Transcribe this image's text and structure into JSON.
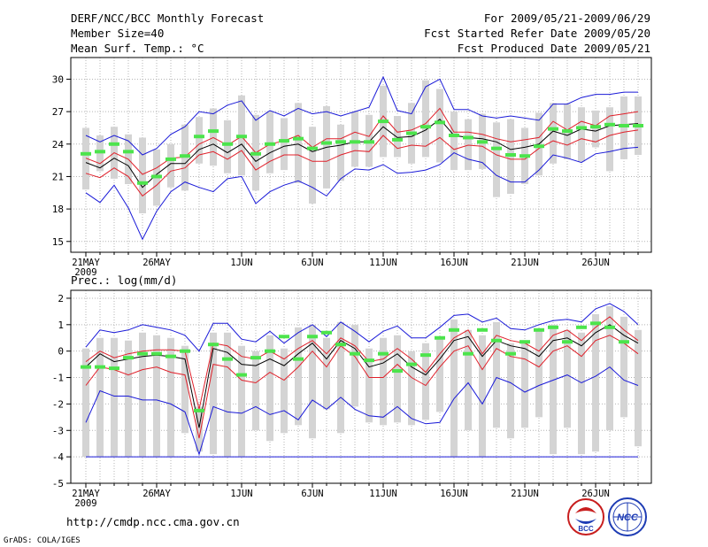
{
  "header": {
    "title": "DERF/NCC/BCC Monthly Forecast",
    "member_size": "Member Size=40",
    "variable": "Mean Surf. Temp.: °C",
    "period": "For 2009/05/21-2009/06/29",
    "started": "Fcst Started Refer Date 2009/05/20",
    "produced": "Fcst Produced Date 2009/05/21"
  },
  "footer": {
    "url": "http://cmdp.ncc.cma.gov.cn",
    "grads": "GrADS: COLA/IGES",
    "logo_bcc": "BCC",
    "logo_ncc": "NCC"
  },
  "colors": {
    "grid": "#b4b4b4",
    "box": "#d4d4d4",
    "mean": "#000000",
    "red": "#e0202a",
    "blue": "#1a1ad8",
    "obs": "#4ce44c",
    "axis": "#000000"
  },
  "chart_data": [
    {
      "type": "line",
      "title": "Mean Surf. Temp.: °C",
      "xlabel": "",
      "ylabel": "°C",
      "ylim": [
        14,
        32
      ],
      "yticks": [
        15,
        18,
        21,
        24,
        27,
        30
      ],
      "xticks": [
        {
          "day": 0,
          "label": "21MAY"
        },
        {
          "day": 5,
          "label": "26MAY"
        },
        {
          "day": 11,
          "label": "1JUN"
        },
        {
          "day": 16,
          "label": "6JUN"
        },
        {
          "day": 21,
          "label": "11JUN"
        },
        {
          "day": 26,
          "label": "16JUN"
        },
        {
          "day": 31,
          "label": "21JUN"
        },
        {
          "day": 36,
          "label": "26JUN"
        }
      ],
      "year_label": "2009",
      "x": [
        0,
        1,
        2,
        3,
        4,
        5,
        6,
        7,
        8,
        9,
        10,
        11,
        12,
        13,
        14,
        15,
        16,
        17,
        18,
        19,
        20,
        21,
        22,
        23,
        24,
        25,
        26,
        27,
        28,
        29,
        30,
        31,
        32,
        33,
        34,
        35,
        36,
        37,
        38,
        39
      ],
      "series": [
        {
          "name": "ensemble-max",
          "values": [
            19.5,
            18.6,
            20.2,
            18.1,
            15.2,
            17.8,
            19.6,
            20.5,
            20.0,
            19.6,
            20.8,
            21.0,
            18.5,
            19.6,
            20.2,
            20.6,
            20.0,
            19.2,
            20.8,
            21.7,
            21.6,
            22.1,
            21.3,
            21.4,
            21.6,
            22.1,
            23.2,
            22.6,
            22.3,
            21.1,
            20.5,
            20.5,
            21.6,
            23.0,
            22.7,
            22.3,
            23.1,
            23.3,
            23.6,
            23.7
          ]
        },
        {
          "name": "upper-percentile",
          "values": [
            21.3,
            20.9,
            21.8,
            21.0,
            19.2,
            20.2,
            21.5,
            21.8,
            23.0,
            23.3,
            22.6,
            23.4,
            21.6,
            22.4,
            23.0,
            23.0,
            22.4,
            22.4,
            23.0,
            23.4,
            23.3,
            24.8,
            23.6,
            23.9,
            23.8,
            24.6,
            23.5,
            23.9,
            23.8,
            23.0,
            22.6,
            22.6,
            23.6,
            24.3,
            23.9,
            24.5,
            24.2,
            24.8,
            25.1,
            25.3
          ]
        },
        {
          "name": "ensemble-mean",
          "values": [
            22.3,
            21.8,
            22.7,
            22.0,
            20.0,
            21.2,
            22.2,
            22.2,
            23.5,
            24.0,
            23.2,
            24.0,
            22.4,
            23.2,
            23.8,
            24.0,
            23.3,
            23.7,
            23.9,
            24.2,
            24.2,
            25.6,
            24.6,
            24.7,
            25.3,
            26.3,
            24.8,
            24.6,
            24.5,
            24.2,
            23.5,
            23.7,
            24.0,
            25.2,
            24.8,
            25.4,
            25.2,
            25.7,
            25.8,
            25.9
          ]
        },
        {
          "name": "lower-percentile",
          "values": [
            22.7,
            22.2,
            23.2,
            22.6,
            21.2,
            21.8,
            22.7,
            22.8,
            24.0,
            24.6,
            23.9,
            24.7,
            23.2,
            24.0,
            24.3,
            24.8,
            23.7,
            24.5,
            24.5,
            25.1,
            24.7,
            26.6,
            25.1,
            25.3,
            25.9,
            27.3,
            25.1,
            25.1,
            24.9,
            24.5,
            24.2,
            24.4,
            24.6,
            26.1,
            25.3,
            26.1,
            25.7,
            26.6,
            26.8,
            27.0
          ]
        },
        {
          "name": "ensemble-min",
          "values": [
            24.8,
            24.2,
            24.8,
            24.3,
            23.0,
            23.6,
            24.9,
            25.6,
            27.0,
            26.8,
            27.6,
            28.0,
            26.2,
            27.1,
            26.6,
            27.3,
            26.8,
            27.0,
            26.6,
            27.0,
            27.4,
            30.2,
            27.1,
            26.8,
            29.3,
            30.0,
            27.2,
            27.2,
            26.6,
            26.4,
            26.6,
            26.4,
            26.2,
            27.7,
            27.7,
            28.3,
            28.6,
            28.6,
            28.8,
            28.8
          ]
        }
      ],
      "boxes": [
        [
          19.8,
          25.5
        ],
        [
          21.5,
          24.8
        ],
        [
          20.8,
          25.6
        ],
        [
          20.3,
          24.9
        ],
        [
          17.6,
          24.6
        ],
        [
          18.3,
          23.5
        ],
        [
          20.0,
          24.0
        ],
        [
          19.7,
          25.8
        ],
        [
          22.2,
          26.5
        ],
        [
          22.0,
          27.3
        ],
        [
          21.3,
          26.2
        ],
        [
          21.1,
          28.5
        ],
        [
          19.7,
          26.7
        ],
        [
          21.3,
          27.0
        ],
        [
          21.6,
          26.4
        ],
        [
          20.4,
          27.8
        ],
        [
          18.5,
          25.6
        ],
        [
          19.9,
          27.5
        ],
        [
          20.6,
          25.8
        ],
        [
          21.9,
          27.0
        ],
        [
          21.9,
          26.7
        ],
        [
          22.8,
          29.4
        ],
        [
          22.8,
          26.6
        ],
        [
          22.2,
          27.8
        ],
        [
          22.8,
          29.9
        ],
        [
          22.3,
          29.1
        ],
        [
          21.6,
          27.0
        ],
        [
          21.6,
          26.3
        ],
        [
          21.7,
          26.8
        ],
        [
          19.1,
          26.0
        ],
        [
          19.4,
          26.3
        ],
        [
          20.3,
          25.5
        ],
        [
          21.1,
          26.9
        ],
        [
          22.2,
          27.8
        ],
        [
          22.6,
          27.7
        ],
        [
          22.4,
          27.4
        ],
        [
          23.7,
          27.1
        ],
        [
          21.5,
          27.4
        ],
        [
          22.6,
          28.4
        ],
        [
          23.0,
          28.4
        ]
      ],
      "observed": [
        23.1,
        23.3,
        24.0,
        23.3,
        20.4,
        21.0,
        22.6,
        22.9,
        24.7,
        25.2,
        24.0,
        24.7,
        23.1,
        24.0,
        24.3,
        24.5,
        23.6,
        24.1,
        24.2,
        24.2,
        24.2,
        26.1,
        24.4,
        25.0,
        25.6,
        26.0,
        24.8,
        24.6,
        24.2,
        23.6,
        23.0,
        22.9,
        23.8,
        25.4,
        25.2,
        25.5,
        25.6,
        25.8,
        25.7,
        25.7
      ]
    },
    {
      "type": "line",
      "title": "Prec.: log(mm/d)",
      "xlabel": "",
      "ylabel": "log(mm/d)",
      "ylim": [
        -5,
        2.3
      ],
      "yticks": [
        -5,
        -4,
        -3,
        -2,
        -1,
        0,
        1,
        2
      ],
      "xticks": [
        {
          "day": 0,
          "label": "21MAY"
        },
        {
          "day": 5,
          "label": "26MAY"
        },
        {
          "day": 11,
          "label": "1JUN"
        },
        {
          "day": 16,
          "label": "6JUN"
        },
        {
          "day": 21,
          "label": "11JUN"
        },
        {
          "day": 26,
          "label": "16JUN"
        },
        {
          "day": 31,
          "label": "21JUN"
        },
        {
          "day": 36,
          "label": "26JUN"
        }
      ],
      "year_label": "2009",
      "floor_value": -4,
      "x": [
        0,
        1,
        2,
        3,
        4,
        5,
        6,
        7,
        8,
        9,
        10,
        11,
        12,
        13,
        14,
        15,
        16,
        17,
        18,
        19,
        20,
        21,
        22,
        23,
        24,
        25,
        26,
        27,
        28,
        29,
        30,
        31,
        32,
        33,
        34,
        35,
        36,
        37,
        38,
        39
      ],
      "series": [
        {
          "name": "ensemble-max",
          "values": [
            0.15,
            0.8,
            0.7,
            0.8,
            1.0,
            0.9,
            0.8,
            0.6,
            0.0,
            1.05,
            1.05,
            0.45,
            0.35,
            0.75,
            0.3,
            0.7,
            1.0,
            0.55,
            1.1,
            0.75,
            0.35,
            0.75,
            0.95,
            0.5,
            0.5,
            0.9,
            1.35,
            1.4,
            1.1,
            1.25,
            0.85,
            0.8,
            1.0,
            1.15,
            1.2,
            1.1,
            1.6,
            1.8,
            1.5,
            1.0
          ]
        },
        {
          "name": "upper-percentile",
          "values": [
            -0.4,
            0.0,
            -0.25,
            -0.1,
            0.0,
            0.05,
            0.05,
            0.0,
            -2.2,
            0.3,
            0.2,
            -0.2,
            -0.3,
            0.0,
            -0.3,
            0.1,
            0.4,
            -0.1,
            0.5,
            0.2,
            -0.4,
            -0.3,
            0.1,
            -0.3,
            -0.8,
            -0.1,
            0.5,
            0.8,
            -0.1,
            0.6,
            0.4,
            0.3,
            0.0,
            0.6,
            0.8,
            0.4,
            0.9,
            1.3,
            0.8,
            0.4
          ]
        },
        {
          "name": "ensemble-mean",
          "values": [
            -0.6,
            -0.1,
            -0.4,
            -0.3,
            -0.2,
            -0.15,
            -0.2,
            -0.3,
            -2.9,
            0.1,
            -0.05,
            -0.5,
            -0.55,
            -0.3,
            -0.55,
            -0.1,
            0.3,
            -0.3,
            0.4,
            0.1,
            -0.6,
            -0.45,
            -0.1,
            -0.6,
            -0.9,
            -0.3,
            0.4,
            0.55,
            -0.2,
            0.4,
            0.2,
            0.1,
            -0.2,
            0.4,
            0.5,
            0.2,
            0.7,
            1.0,
            0.6,
            0.3
          ]
        },
        {
          "name": "lower-percentile",
          "values": [
            -1.3,
            -0.6,
            -0.7,
            -0.9,
            -0.7,
            -0.6,
            -0.8,
            -0.9,
            -3.3,
            -0.5,
            -0.6,
            -1.1,
            -1.2,
            -0.8,
            -1.1,
            -0.6,
            0.0,
            -0.6,
            0.2,
            -0.2,
            -1.0,
            -1.0,
            -0.5,
            -1.0,
            -1.3,
            -0.6,
            0.0,
            0.2,
            -0.7,
            0.1,
            -0.2,
            -0.3,
            -0.6,
            0.0,
            0.2,
            -0.2,
            0.4,
            0.6,
            0.3,
            -0.1
          ]
        },
        {
          "name": "ensemble-min",
          "values": [
            -2.7,
            -1.5,
            -1.7,
            -1.7,
            -1.85,
            -1.85,
            -2.0,
            -2.3,
            -3.9,
            -2.1,
            -2.3,
            -2.35,
            -2.1,
            -2.4,
            -2.25,
            -2.6,
            -1.85,
            -2.2,
            -1.75,
            -2.2,
            -2.45,
            -2.5,
            -2.1,
            -2.55,
            -2.75,
            -2.7,
            -1.8,
            -1.2,
            -2.0,
            -1.0,
            -1.2,
            -1.55,
            -1.3,
            -1.1,
            -0.9,
            -1.2,
            -0.95,
            -0.6,
            -1.1,
            -1.3
          ]
        }
      ],
      "boxes": [
        [
          -4.0,
          0.1
        ],
        [
          -4.0,
          0.5
        ],
        [
          -4.0,
          0.5
        ],
        [
          -4.0,
          0.4
        ],
        [
          -4.0,
          0.7
        ],
        [
          -4.0,
          0.6
        ],
        [
          -4.0,
          0.5
        ],
        [
          -3.1,
          0.2
        ],
        [
          -3.8,
          -2.1
        ],
        [
          -3.9,
          0.7
        ],
        [
          -4.0,
          0.7
        ],
        [
          -4.0,
          0.2
        ],
        [
          -3.0,
          0.0
        ],
        [
          -3.4,
          0.6
        ],
        [
          -3.1,
          0.1
        ],
        [
          -2.8,
          0.9
        ],
        [
          -3.3,
          1.0
        ],
        [
          -2.2,
          0.5
        ],
        [
          -3.1,
          1.1
        ],
        [
          -2.1,
          1.0
        ],
        [
          -2.7,
          0.1
        ],
        [
          -2.8,
          0.5
        ],
        [
          -2.7,
          0.6
        ],
        [
          -2.8,
          0.0
        ],
        [
          -2.6,
          0.3
        ],
        [
          -2.3,
          0.5
        ],
        [
          -4.0,
          1.2
        ],
        [
          -3.0,
          0.8
        ],
        [
          -4.0,
          0.6
        ],
        [
          -2.9,
          1.1
        ],
        [
          -3.3,
          0.3
        ],
        [
          -2.9,
          0.4
        ],
        [
          -2.5,
          0.8
        ],
        [
          -3.9,
          1.0
        ],
        [
          -2.9,
          0.8
        ],
        [
          -3.9,
          0.7
        ],
        [
          -3.8,
          1.4
        ],
        [
          -3.0,
          1.7
        ],
        [
          -2.5,
          1.3
        ],
        [
          -3.6,
          0.8
        ]
      ],
      "observed": [
        -0.6,
        -0.6,
        -0.65,
        -0.25,
        -0.1,
        -0.1,
        -0.2,
        0.0,
        -2.25,
        0.25,
        -0.3,
        -0.9,
        -0.25,
        0.0,
        0.55,
        -0.3,
        0.55,
        0.7,
        0.25,
        -0.1,
        -0.35,
        -0.1,
        -0.75,
        -0.5,
        -0.15,
        0.5,
        0.8,
        -0.1,
        0.8,
        0.4,
        -0.1,
        0.35,
        0.8,
        0.9,
        0.35,
        0.9,
        1.05,
        0.9,
        0.35,
        null
      ]
    }
  ]
}
